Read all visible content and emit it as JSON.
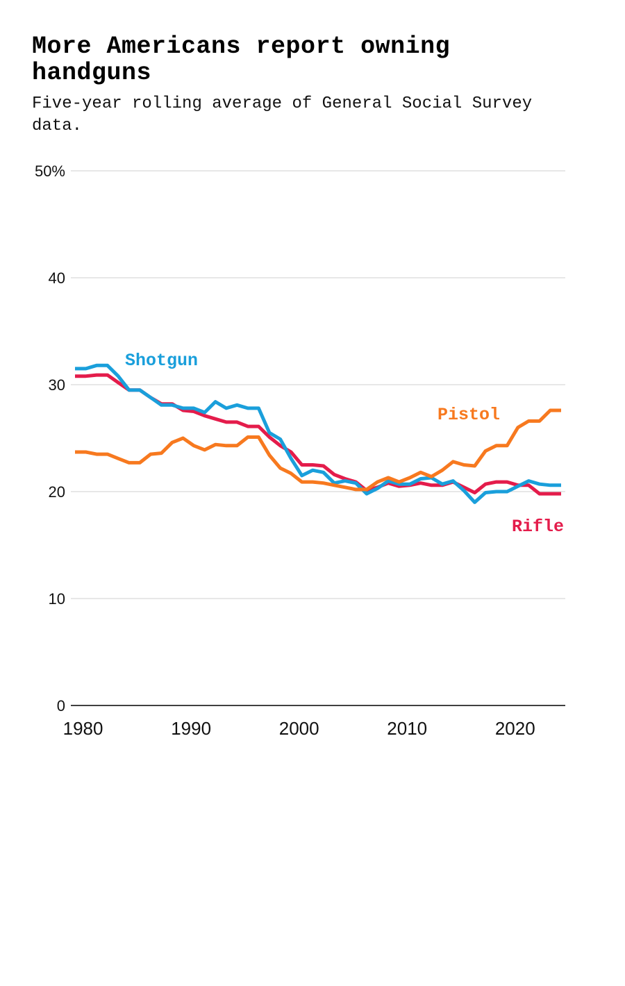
{
  "title": "More Americans report owning handguns",
  "subtitle": "Five-year rolling average of General Social Survey data.",
  "chart_data": {
    "type": "line",
    "title": "More Americans report owning handguns",
    "subtitle": "Five-year rolling average of General Social Survey data.",
    "xlabel": "",
    "ylabel": "",
    "xlim": [
      1979,
      2024
    ],
    "ylim": [
      0,
      50
    ],
    "grid": true,
    "legend": "direct labels",
    "x_ticks": [
      1980,
      1990,
      2000,
      2010,
      2020
    ],
    "x_tick_labels": [
      "1980",
      "1990",
      "2000",
      "2010",
      "2020"
    ],
    "y_ticks": [
      0,
      10,
      20,
      30,
      40,
      50
    ],
    "y_tick_labels": [
      "0",
      "10",
      "20",
      "30",
      "40",
      "50%"
    ],
    "x": [
      1979,
      1980,
      1981,
      1982,
      1983,
      1984,
      1985,
      1986,
      1987,
      1988,
      1989,
      1990,
      1991,
      1992,
      1993,
      1994,
      1995,
      1996,
      1997,
      1998,
      1999,
      2000,
      2001,
      2002,
      2003,
      2004,
      2005,
      2006,
      2007,
      2008,
      2009,
      2010,
      2011,
      2012,
      2013,
      2014,
      2015,
      2016,
      2017,
      2018,
      2019,
      2020,
      2021,
      2022,
      2023,
      2024
    ],
    "series": [
      {
        "name": "Shotgun",
        "color": "#1a9fdb",
        "values": [
          31.5,
          31.5,
          31.8,
          31.8,
          30.8,
          29.5,
          29.5,
          28.8,
          28.1,
          28.1,
          27.8,
          27.8,
          27.4,
          28.4,
          27.8,
          28.1,
          27.8,
          27.8,
          25.5,
          24.9,
          23.1,
          21.5,
          22.0,
          21.8,
          20.8,
          21.0,
          20.8,
          19.8,
          20.3,
          21.0,
          20.7,
          20.7,
          21.2,
          21.3,
          20.7,
          21.0,
          20.1,
          19.0,
          19.9,
          20.0,
          20.0,
          20.5,
          21.0,
          20.7,
          20.6,
          20.6
        ]
      },
      {
        "name": "Pistol",
        "color": "#f7791f",
        "values": [
          23.7,
          23.7,
          23.5,
          23.5,
          23.1,
          22.7,
          22.7,
          23.5,
          23.6,
          24.6,
          25.0,
          24.3,
          23.9,
          24.4,
          24.3,
          24.3,
          25.1,
          25.1,
          23.4,
          22.2,
          21.7,
          20.9,
          20.9,
          20.8,
          20.6,
          20.4,
          20.2,
          20.2,
          20.9,
          21.3,
          20.9,
          21.3,
          21.8,
          21.4,
          22.0,
          22.8,
          22.5,
          22.4,
          23.8,
          24.3,
          24.3,
          26.0,
          26.6,
          26.6,
          27.6,
          27.6
        ]
      },
      {
        "name": "Rifle",
        "color": "#e41c4b",
        "values": [
          30.8,
          30.8,
          30.9,
          30.9,
          30.2,
          29.5,
          29.5,
          28.8,
          28.2,
          28.2,
          27.6,
          27.5,
          27.1,
          26.8,
          26.5,
          26.5,
          26.1,
          26.1,
          25.1,
          24.3,
          23.7,
          22.5,
          22.5,
          22.4,
          21.6,
          21.2,
          20.9,
          20.1,
          20.4,
          20.8,
          20.5,
          20.6,
          20.8,
          20.6,
          20.6,
          20.9,
          20.4,
          19.9,
          20.7,
          20.9,
          20.9,
          20.6,
          20.6,
          19.8,
          19.8,
          19.8
        ]
      }
    ]
  }
}
